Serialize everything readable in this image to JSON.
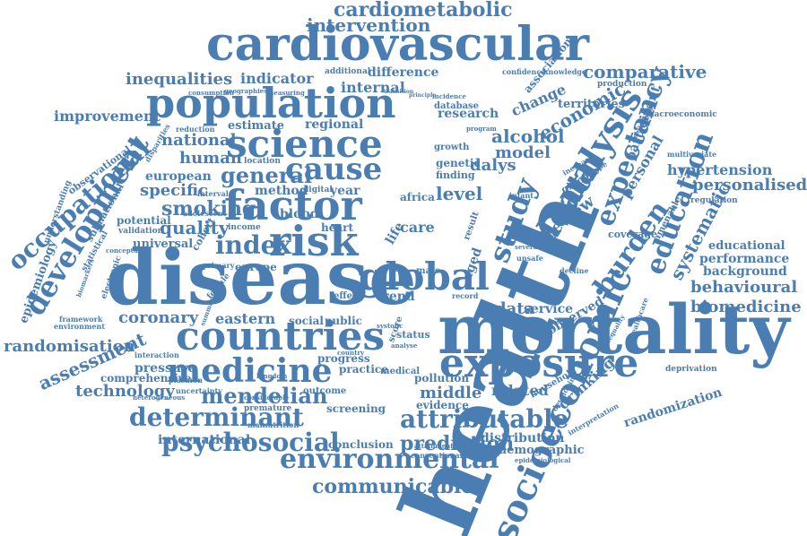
{
  "colors": {
    "word": "#4a7db1",
    "background": "#ffffff"
  },
  "words": [
    "health",
    "disease",
    "mortality",
    "cardiovascular",
    "population",
    "risk",
    "factor",
    "global",
    "exposure",
    "countries",
    "science",
    "medicine",
    "cause",
    "analysis",
    "death",
    "socioeconomic",
    "development",
    "occupational",
    "study",
    "burden",
    "expectancy",
    "education",
    "environmental",
    "determinant",
    "attributable",
    "psychosocial",
    "communicable",
    "mendelian",
    "prediction",
    "intervention",
    "cardiometabolic",
    "inequalities",
    "index",
    "general",
    "smoking",
    "quality",
    "human",
    "national",
    "specific",
    "improvement",
    "comparative",
    "economic",
    "alcohol",
    "model",
    "dalys",
    "level",
    "personalised",
    "hypertension",
    "systematic",
    "review",
    "behavioural",
    "biomedicine",
    "performance",
    "background",
    "educational",
    "randomisation",
    "assessment",
    "technology",
    "coronary",
    "eastern",
    "data",
    "service",
    "middle",
    "related",
    "drinking",
    "randomization",
    "international",
    "conclusion",
    "distribution",
    "demographic",
    "research",
    "territories",
    "change",
    "association",
    "indicator",
    "difference",
    "internal",
    "regional",
    "estimate",
    "method",
    "year",
    "europe",
    "european",
    "potential",
    "universal",
    "epidemiology",
    "blood",
    "heart",
    "care",
    "life",
    "public",
    "social",
    "trend",
    "progress",
    "practice",
    "medical",
    "observed",
    "evidence",
    "screening",
    "outcome",
    "pressure",
    "comprehensive",
    "pollution",
    "household",
    "personal",
    "participant",
    "genetic",
    "finding",
    "growth",
    "africa",
    "aged",
    "result",
    "status",
    "score",
    "effect",
    "deprivation",
    "macroeconomic",
    "multivariate",
    "regulation",
    "coverage",
    "amenable",
    "database",
    "additional",
    "production",
    "confidence",
    "knowledge",
    "observational",
    "understanding",
    "validation",
    "electronic",
    "statistical",
    "subnational",
    "framework",
    "environment",
    "cohort",
    "primary",
    "income",
    "location",
    "digital",
    "interval",
    "adolescent",
    "consumption",
    "geographies",
    "measuring",
    "disparities",
    "reduction",
    "male",
    "female",
    "plasmon",
    "interaction",
    "premature",
    "uncertainty",
    "malnutrition",
    "conventional",
    "attainment",
    "epidemiological",
    "interpretation",
    "developing",
    "heterogeneous",
    "considerable",
    "biomarkers",
    "conceptual",
    "summary",
    "kingdom",
    "record",
    "decline",
    "glucose",
    "patient",
    "healthcare",
    "inequality",
    "rate",
    "country",
    "childhood",
    "sensitivity",
    "systolic",
    "analyse",
    "incidence",
    "transition",
    "principle",
    "unsafe",
    "several",
    "increase",
    "subtype",
    "infant",
    "program"
  ]
}
